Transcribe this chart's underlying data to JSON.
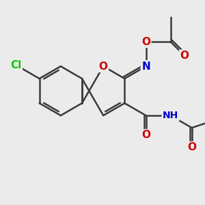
{
  "background_color": "#ebebeb",
  "bond_color": "#3a3a3a",
  "atom_colors": {
    "Cl": "#00cc00",
    "O": "#cc0000",
    "N": "#0000cc",
    "H": "#7a9a9a",
    "C": "#3a3a3a"
  },
  "title": "",
  "figsize": [
    3.0,
    3.0
  ],
  "dpi": 100
}
